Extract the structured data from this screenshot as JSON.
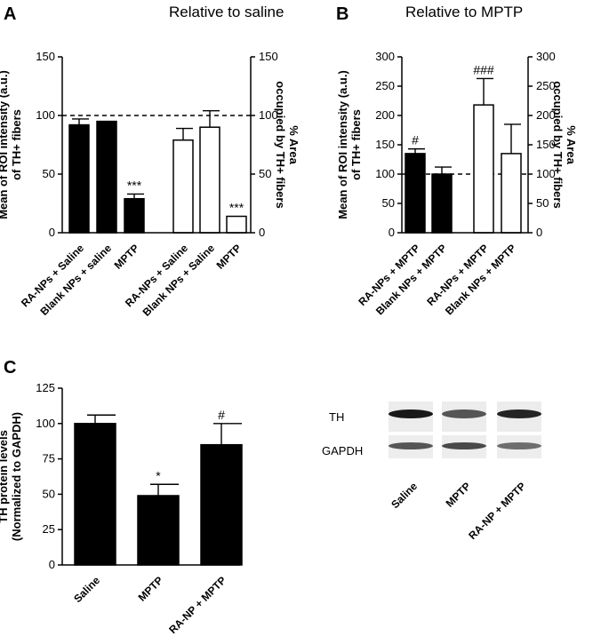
{
  "panels": {
    "A": {
      "letter": "A",
      "title": "Relative to saline"
    },
    "B": {
      "letter": "B",
      "title": "Relative to MPTP"
    },
    "C": {
      "letter": "C"
    }
  },
  "chart_data": [
    {
      "id": "A",
      "type": "bar",
      "title": "Relative to saline",
      "ylabel": "Mean of ROI intensity (a.u.) of TH+ fibers",
      "ylabel_lines": [
        "Mean of ROI intensity (a.u.)",
        "of TH+ fibers"
      ],
      "y2label": "% Area occupied by TH+ fibers",
      "y2label_lines": [
        "% Area",
        "occupied by TH+ fibers"
      ],
      "ylim": [
        0,
        150
      ],
      "yticks": [
        "0",
        "50",
        "100",
        "150"
      ],
      "y2ticks": [
        "0",
        "50",
        "100",
        "150"
      ],
      "reference_line": 100,
      "bars": [
        {
          "label": "RA-NPs + Saline",
          "value": 92,
          "error": 5,
          "fill": "filled",
          "sig": ""
        },
        {
          "label": "Blank NPs + saline",
          "value": 95,
          "error": 0,
          "fill": "filled",
          "sig": ""
        },
        {
          "label": "MPTP",
          "value": 29,
          "error": 4,
          "fill": "filled",
          "sig": "***"
        },
        {
          "label": "RA-NPs + Saline",
          "value": 79,
          "error": 10,
          "fill": "open",
          "sig": ""
        },
        {
          "label": "Blank NPs + Saline",
          "value": 90,
          "error": 14,
          "fill": "open",
          "sig": ""
        },
        {
          "label": "MPTP",
          "value": 14,
          "error": 0,
          "fill": "open",
          "sig": "***"
        }
      ]
    },
    {
      "id": "B",
      "type": "bar",
      "title": "Relative to MPTP",
      "ylabel": "Mean of ROI intensity (a.u.) of TH+ fibers",
      "ylabel_lines": [
        "Mean of ROI intensity (a.u.)",
        "of TH+ fibers"
      ],
      "y2label": "% Area occupied by TH+ fibers",
      "y2label_lines": [
        "% Area",
        "occupied by TH+ fibers"
      ],
      "ylim": [
        0,
        300
      ],
      "yticks": [
        "0",
        "50",
        "100",
        "150",
        "200",
        "250",
        "300"
      ],
      "y2ticks": [
        "0",
        "50",
        "100",
        "150",
        "200",
        "250",
        "300"
      ],
      "reference_line": 100,
      "bars": [
        {
          "label": "RA-NPs + MPTP",
          "value": 135,
          "error": 8,
          "fill": "filled",
          "sig": "#"
        },
        {
          "label": "Blank NPs + MPTP",
          "value": 100,
          "error": 12,
          "fill": "filled",
          "sig": ""
        },
        {
          "label": "RA-NPs + MPTP",
          "value": 218,
          "error": 45,
          "fill": "open",
          "sig": "###"
        },
        {
          "label": "Blank NPs + MPTP",
          "value": 135,
          "error": 50,
          "fill": "open",
          "sig": ""
        }
      ]
    },
    {
      "id": "C",
      "type": "bar",
      "ylabel": "TH protein levels (Normalized to GAPDH)",
      "ylabel_lines": [
        "TH protein levels",
        "(Normalized to GAPDH)"
      ],
      "ylim": [
        0,
        125
      ],
      "yticks": [
        "0",
        "25",
        "50",
        "75",
        "100",
        "125"
      ],
      "bars": [
        {
          "label": "Saline",
          "value": 100,
          "error": 6,
          "fill": "filled",
          "sig": ""
        },
        {
          "label": "MPTP",
          "value": 49,
          "error": 8,
          "fill": "filled",
          "sig": "*"
        },
        {
          "label": "RA-NP + MPTP",
          "value": 85,
          "error": 15,
          "fill": "filled",
          "sig": "#"
        }
      ]
    }
  ],
  "blot": {
    "rows": [
      "TH",
      "GAPDH"
    ],
    "lanes": [
      "Saline",
      "MPTP",
      "RA-NP + MPTP"
    ],
    "intensity": {
      "TH": [
        0.95,
        0.7,
        0.9
      ],
      "GAPDH": [
        0.7,
        0.75,
        0.6
      ]
    }
  }
}
